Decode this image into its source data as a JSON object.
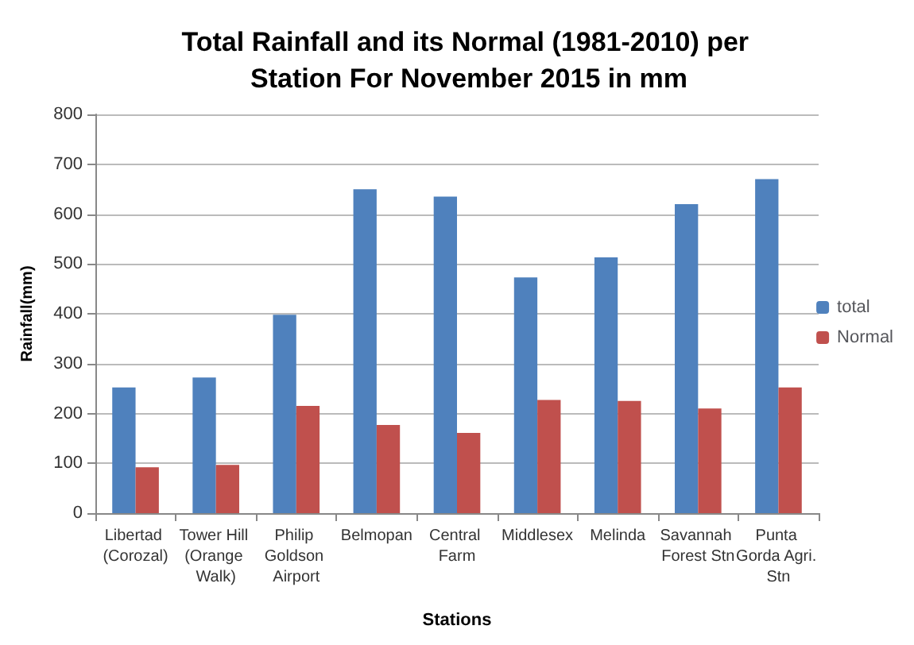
{
  "chart_data": {
    "type": "bar",
    "title": "Total Rainfall and its Normal (1981-2010) per Station For November 2015 in mm",
    "xlabel": "Stations",
    "ylabel": "Rainfall(mm)",
    "categories": [
      "Libertad (Corozal)",
      "Tower Hill (Orange Walk)",
      "Philip Goldson Airport",
      "Belmopan",
      "Central Farm",
      "Middlesex",
      "Melinda",
      "Savannah Forest Stn",
      "Punta Gorda Agri. Stn"
    ],
    "series": [
      {
        "name": "total",
        "color": "#4f81bd",
        "values": [
          252,
          272,
          398,
          650,
          635,
          473,
          513,
          620,
          670
        ]
      },
      {
        "name": "Normal",
        "color": "#c0504d",
        "values": [
          92,
          97,
          215,
          177,
          161,
          227,
          225,
          210,
          252
        ]
      }
    ],
    "ylim": [
      0,
      800
    ],
    "yticks": [
      0,
      100,
      200,
      300,
      400,
      500,
      600,
      700,
      800
    ],
    "grid": "y",
    "legend": "right"
  }
}
